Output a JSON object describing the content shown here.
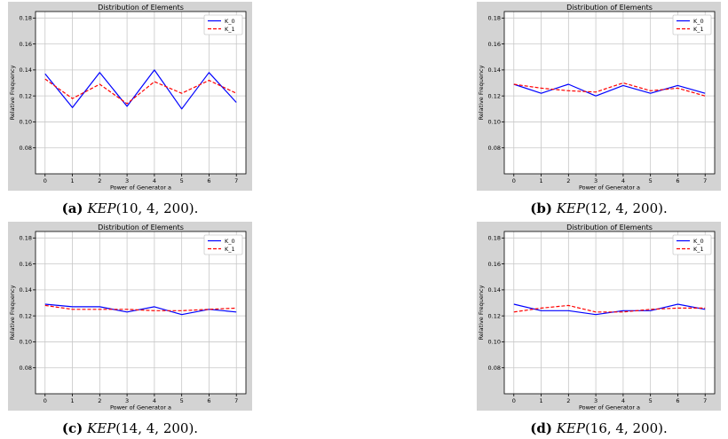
{
  "chart_data": [
    {
      "id": "a",
      "type": "line",
      "title": "Distribution of Elements",
      "xlabel": "Power of Generator a",
      "ylabel": "Relative Frequency",
      "xlim": [
        -0.35,
        7.35
      ],
      "ylim": [
        0.06,
        0.185
      ],
      "x": [
        0,
        1,
        2,
        3,
        4,
        5,
        6,
        7
      ],
      "x_ticks": [
        "0",
        "1",
        "2",
        "3",
        "4",
        "5",
        "6",
        "7"
      ],
      "y_ticks": [
        "0.08",
        "0.10",
        "0.12",
        "0.14",
        "0.16",
        "0.18"
      ],
      "grid": true,
      "legend": "top-right",
      "series": [
        {
          "name": "K_0",
          "color": "#0000ff",
          "style": "solid",
          "values": [
            0.137,
            0.111,
            0.138,
            0.112,
            0.14,
            0.11,
            0.138,
            0.115
          ]
        },
        {
          "name": "K_1",
          "color": "#ff0000",
          "style": "dashed",
          "values": [
            0.133,
            0.118,
            0.129,
            0.114,
            0.131,
            0.122,
            0.132,
            0.122
          ]
        }
      ],
      "caption": {
        "label": "(a)",
        "name": "KEP",
        "args": "(10, 4, 200)."
      }
    },
    {
      "id": "b",
      "type": "line",
      "title": "Distribution of Elements",
      "xlabel": "Power of Generator a",
      "ylabel": "Relative Frequency",
      "xlim": [
        -0.35,
        7.35
      ],
      "ylim": [
        0.06,
        0.185
      ],
      "x": [
        0,
        1,
        2,
        3,
        4,
        5,
        6,
        7
      ],
      "x_ticks": [
        "0",
        "1",
        "2",
        "3",
        "4",
        "5",
        "6",
        "7"
      ],
      "y_ticks": [
        "0.08",
        "0.10",
        "0.12",
        "0.14",
        "0.16",
        "0.18"
      ],
      "grid": true,
      "legend": "top-right",
      "series": [
        {
          "name": "K_0",
          "color": "#0000ff",
          "style": "solid",
          "values": [
            0.129,
            0.122,
            0.129,
            0.12,
            0.128,
            0.122,
            0.128,
            0.122
          ]
        },
        {
          "name": "K_1",
          "color": "#ff0000",
          "style": "dashed",
          "values": [
            0.129,
            0.126,
            0.124,
            0.123,
            0.13,
            0.124,
            0.126,
            0.12
          ]
        }
      ],
      "caption": {
        "label": "(b)",
        "name": "KEP",
        "args": "(12, 4, 200)."
      }
    },
    {
      "id": "c",
      "type": "line",
      "title": "Distribution of Elements",
      "xlabel": "Power of Generator a",
      "ylabel": "Relative Frequency",
      "xlim": [
        -0.35,
        7.35
      ],
      "ylim": [
        0.06,
        0.185
      ],
      "x": [
        0,
        1,
        2,
        3,
        4,
        5,
        6,
        7
      ],
      "x_ticks": [
        "0",
        "1",
        "2",
        "3",
        "4",
        "5",
        "6",
        "7"
      ],
      "y_ticks": [
        "0.08",
        "0.10",
        "0.12",
        "0.14",
        "0.16",
        "0.18"
      ],
      "grid": true,
      "legend": "top-right",
      "series": [
        {
          "name": "K_0",
          "color": "#0000ff",
          "style": "solid",
          "values": [
            0.129,
            0.127,
            0.127,
            0.123,
            0.127,
            0.121,
            0.125,
            0.123
          ]
        },
        {
          "name": "K_1",
          "color": "#ff0000",
          "style": "dashed",
          "values": [
            0.128,
            0.125,
            0.125,
            0.125,
            0.124,
            0.124,
            0.125,
            0.126
          ]
        }
      ],
      "caption": {
        "label": "(c)",
        "name": "KEP",
        "args": "(14, 4, 200)."
      }
    },
    {
      "id": "d",
      "type": "line",
      "title": "Distribution of Elements",
      "xlabel": "Power of Generator a",
      "ylabel": "Relative Frequency",
      "xlim": [
        -0.35,
        7.35
      ],
      "ylim": [
        0.06,
        0.185
      ],
      "x": [
        0,
        1,
        2,
        3,
        4,
        5,
        6,
        7
      ],
      "x_ticks": [
        "0",
        "1",
        "2",
        "3",
        "4",
        "5",
        "6",
        "7"
      ],
      "y_ticks": [
        "0.08",
        "0.10",
        "0.12",
        "0.14",
        "0.16",
        "0.18"
      ],
      "grid": true,
      "legend": "top-right",
      "series": [
        {
          "name": "K_0",
          "color": "#0000ff",
          "style": "solid",
          "values": [
            0.129,
            0.124,
            0.124,
            0.121,
            0.124,
            0.124,
            0.129,
            0.125
          ]
        },
        {
          "name": "K_1",
          "color": "#ff0000",
          "style": "dashed",
          "values": [
            0.123,
            0.126,
            0.128,
            0.123,
            0.123,
            0.125,
            0.126,
            0.126
          ]
        }
      ],
      "caption": {
        "label": "(d)",
        "name": "KEP",
        "args": "(16, 4, 200)."
      }
    }
  ],
  "colors": {
    "figure_background": "#d3d3d3",
    "plot_background": "#ffffff",
    "grid": "#c8c8c8"
  }
}
